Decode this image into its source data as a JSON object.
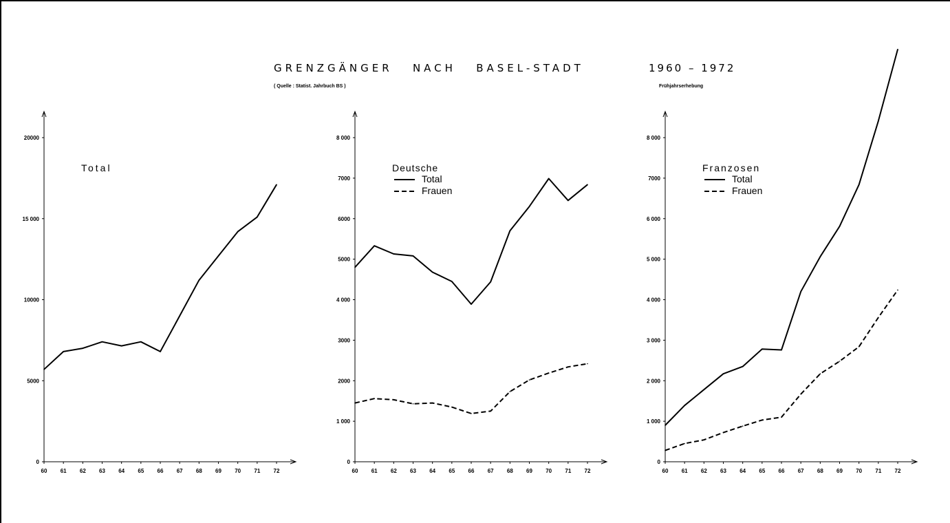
{
  "header": {
    "title": "GRENZGÄNGER   NACH   BASEL-STADT",
    "years": "1960 – 1972",
    "source": "( Quelle : Statist. Jahrbuch BS )",
    "note": "Frühjahrserhebung"
  },
  "chart_data": [
    {
      "type": "line",
      "title": "Total",
      "x": [
        "60",
        "61",
        "62",
        "63",
        "64",
        "65",
        "66",
        "67",
        "68",
        "69",
        "70",
        "71",
        "72"
      ],
      "ylim": [
        0,
        20000
      ],
      "yticks": [
        0,
        5000,
        10000,
        15000,
        20000
      ],
      "ytick_labels": [
        "0",
        "5000",
        "10000",
        "15 000",
        "20000"
      ],
      "legend": [],
      "series": [
        {
          "name": "",
          "style": "solid",
          "values": [
            5700,
            6800,
            7000,
            7400,
            7150,
            7400,
            6800,
            9000,
            11200,
            12700,
            14200,
            15100,
            17100
          ]
        }
      ]
    },
    {
      "type": "line",
      "title": "Deutsche",
      "x": [
        "60",
        "61",
        "62",
        "63",
        "64",
        "65",
        "66",
        "67",
        "68",
        "69",
        "70",
        "71",
        "72"
      ],
      "ylim": [
        0,
        8000
      ],
      "yticks": [
        0,
        1000,
        2000,
        3000,
        4000,
        5000,
        6000,
        7000,
        8000
      ],
      "ytick_labels": [
        "0",
        "1 000",
        "2000",
        "3000",
        "4 000",
        "5000",
        "6000",
        "7000",
        "8 000"
      ],
      "legend": [
        "Total",
        "Frauen"
      ],
      "series": [
        {
          "name": "Total",
          "style": "solid",
          "values": [
            4800,
            5330,
            5130,
            5080,
            4680,
            4450,
            3890,
            4440,
            5700,
            6300,
            6990,
            6450,
            6840
          ]
        },
        {
          "name": "Frauen",
          "style": "dashed",
          "values": [
            1450,
            1560,
            1530,
            1430,
            1450,
            1350,
            1190,
            1250,
            1730,
            2020,
            2190,
            2340,
            2420
          ]
        }
      ]
    },
    {
      "type": "line",
      "title": "Franzosen",
      "x": [
        "60",
        "61",
        "62",
        "63",
        "64",
        "65",
        "66",
        "67",
        "68",
        "69",
        "70",
        "71",
        "72"
      ],
      "ylim": [
        0,
        8000
      ],
      "yticks": [
        0,
        1000,
        2000,
        3000,
        4000,
        5000,
        6000,
        7000,
        8000
      ],
      "ytick_labels": [
        "0",
        "1 000",
        "2 000",
        "3 000",
        "4 000",
        "5 000",
        "6 000",
        "7000",
        "8 000"
      ],
      "legend": [
        "Total",
        "Frauen"
      ],
      "series": [
        {
          "name": "Total",
          "style": "solid",
          "values": [
            900,
            1390,
            1780,
            2170,
            2350,
            2780,
            2760,
            4200,
            5060,
            5810,
            6840,
            8410,
            10180
          ]
        },
        {
          "name": "Frauen",
          "style": "dashed",
          "values": [
            280,
            450,
            540,
            720,
            880,
            1030,
            1100,
            1670,
            2170,
            2480,
            2840,
            3560,
            4240
          ]
        }
      ]
    }
  ]
}
